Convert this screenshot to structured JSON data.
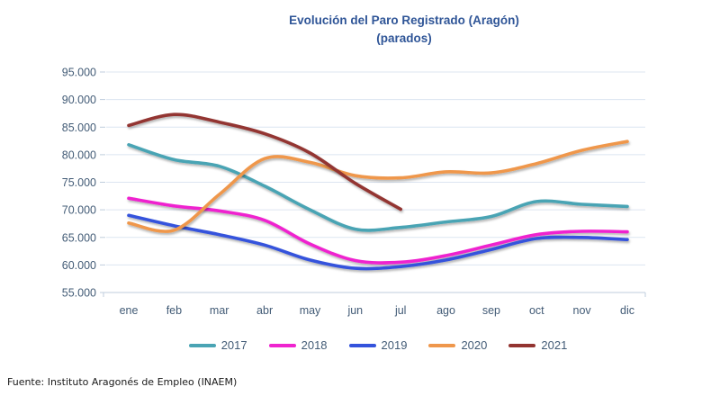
{
  "chart_data": {
    "type": "line",
    "title": "Evolución del Paro Registrado (Aragón)",
    "subtitle": "(parados)",
    "source": "Fuente: Instituto Aragonés de Empleo (INAEM)",
    "categories": [
      "ene",
      "feb",
      "mar",
      "abr",
      "may",
      "jun",
      "jul",
      "ago",
      "sep",
      "oct",
      "nov",
      "dic"
    ],
    "y_axis": {
      "min": 55000,
      "max": 95000,
      "step": 5000,
      "tick_labels": [
        "95.000",
        "90.000",
        "85.000",
        "80.000",
        "75.000",
        "70.000",
        "65.000",
        "60.000",
        "55.000"
      ]
    },
    "grid": true,
    "legend_position": "bottom",
    "series": [
      {
        "name": "2017",
        "color": "#4AA4B4",
        "values": [
          81800,
          79100,
          77900,
          74300,
          70000,
          66500,
          66800,
          67800,
          68800,
          71500,
          71000,
          70600
        ]
      },
      {
        "name": "2018",
        "color": "#EF24CF",
        "values": [
          72100,
          70700,
          69800,
          68100,
          63800,
          60800,
          60500,
          61700,
          63600,
          65500,
          66100,
          66000
        ]
      },
      {
        "name": "2019",
        "color": "#3453DC",
        "values": [
          69000,
          67100,
          65500,
          63600,
          60900,
          59400,
          59700,
          60900,
          62800,
          64800,
          65000,
          64600
        ]
      },
      {
        "name": "2020",
        "color": "#EF974C",
        "values": [
          67600,
          66300,
          72800,
          79300,
          78600,
          76200,
          75800,
          76900,
          76700,
          78400,
          80800,
          82400
        ]
      },
      {
        "name": "2021",
        "color": "#933430",
        "values": [
          85300,
          87300,
          85900,
          83800,
          80300,
          74800,
          70100,
          null,
          null,
          null,
          null,
          null
        ]
      }
    ]
  },
  "style_colors": {
    "title": "#2F5597",
    "axis_text": "#425B76",
    "gridline": "#DCE5F1",
    "axis_line": "#BFCDDC"
  }
}
